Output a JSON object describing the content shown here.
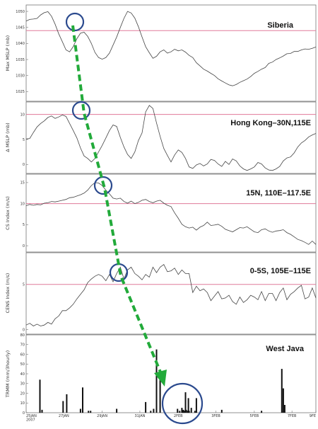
{
  "chart_data": [
    {
      "type": "line",
      "title": "Siberia",
      "ylabel": "Max MSLP (mb)",
      "ylim": [
        1022,
        1052
      ],
      "yticks": [
        1050,
        1045,
        1040,
        1035,
        1030,
        1025
      ],
      "reference_line": 1044,
      "x": [
        0,
        0.05,
        0.1,
        0.15,
        0.2,
        0.25,
        0.3,
        0.35,
        0.4,
        0.45,
        0.5,
        0.55,
        0.6,
        0.65,
        0.7,
        0.75,
        0.8,
        0.85,
        0.9,
        0.95,
        1,
        1.05,
        1.1,
        1.15,
        1.2,
        1.25,
        1.3,
        1.35,
        1.4,
        1.45,
        1.5,
        1.55,
        1.6,
        1.65,
        1.7,
        1.75,
        1.8,
        1.85,
        1.9,
        1.95,
        2,
        2.05,
        2.1,
        2.15,
        2.2,
        2.25,
        2.3,
        2.35,
        2.4,
        2.45,
        2.5,
        2.55,
        2.6,
        2.65,
        2.7,
        2.75,
        2.8,
        2.85,
        2.9,
        2.95,
        3,
        3.05,
        3.1,
        3.15,
        3.2,
        3.25,
        3.3,
        3.35,
        3.4,
        3.45,
        3.5,
        3.55,
        3.6,
        3.65,
        3.7,
        3.75,
        3.8,
        3.85,
        3.9,
        3.95,
        4
      ],
      "values": [
        1047,
        1047.5,
        1047.6,
        1047.8,
        1048.9,
        1049.6,
        1049.9,
        1048.5,
        1046,
        1043,
        1040.5,
        1038,
        1037.4,
        1039,
        1041.5,
        1043.2,
        1043.5,
        1042.2,
        1040,
        1037.2,
        1035.6,
        1035.1,
        1035.6,
        1037,
        1039.5,
        1042,
        1045,
        1047.8,
        1050,
        1049.5,
        1047.9,
        1045.2,
        1042,
        1039,
        1037.1,
        1035.4,
        1036,
        1037.4,
        1038,
        1037,
        1037.4,
        1038.2,
        1037.7,
        1038,
        1037.3,
        1036.3,
        1035.6,
        1034,
        1033,
        1032,
        1031.4,
        1030.7,
        1030,
        1029,
        1028.3,
        1027.7,
        1027.1,
        1026.8,
        1027.2,
        1027.9,
        1028.4,
        1028.9,
        1029.7,
        1030.7,
        1031.3,
        1032,
        1032.5,
        1033.8,
        1034.2,
        1035,
        1035.5,
        1036.1,
        1036.8,
        1036.9,
        1037.5,
        1037.5,
        1038,
        1038.3,
        1038.2,
        1038.5,
        1038.9
      ]
    },
    {
      "type": "line",
      "title": "Hong Kong–30N,115E",
      "ylabel": "Δ MSLP (mb)",
      "ylim": [
        -1.8,
        12.5
      ],
      "yticks": [
        10,
        5,
        0
      ],
      "reference_line": 10,
      "x": [
        0,
        0.05,
        0.1,
        0.15,
        0.2,
        0.25,
        0.3,
        0.35,
        0.4,
        0.45,
        0.5,
        0.55,
        0.6,
        0.65,
        0.7,
        0.75,
        0.8,
        0.85,
        0.9,
        0.95,
        1,
        1.05,
        1.1,
        1.15,
        1.2,
        1.25,
        1.3,
        1.35,
        1.4,
        1.45,
        1.5,
        1.55,
        1.6,
        1.65,
        1.7,
        1.75,
        1.8,
        1.85,
        1.9,
        1.95,
        2,
        2.05,
        2.1,
        2.15,
        2.2,
        2.25,
        2.3,
        2.35,
        2.4,
        2.45,
        2.5,
        2.55,
        2.6,
        2.65,
        2.7,
        2.75,
        2.8,
        2.85,
        2.9,
        2.95,
        3,
        3.05,
        3.1,
        3.15,
        3.2,
        3.25,
        3.3,
        3.35,
        3.4,
        3.45,
        3.5,
        3.55,
        3.6,
        3.65,
        3.7,
        3.75,
        3.8,
        3.85,
        3.9,
        3.95,
        4
      ],
      "values": [
        5.1,
        5.2,
        6.4,
        7.5,
        8.2,
        8.7,
        9.4,
        9.7,
        9.2,
        9.5,
        9.9,
        9.6,
        8.2,
        6.8,
        5.3,
        3.3,
        1.7,
        1.2,
        0.5,
        1.2,
        2.5,
        3.8,
        5.3,
        6.8,
        7.9,
        7.6,
        5.4,
        3.5,
        2,
        1.2,
        2.5,
        4.8,
        6.3,
        10.5,
        11.8,
        11.2,
        8.3,
        5.6,
        3.2,
        1.8,
        0.5,
        1.9,
        2.9,
        2.4,
        1.2,
        -0.5,
        -0.8,
        -0.1,
        0.2,
        -0.3,
        0.1,
        1,
        0.8,
        0.1,
        -0.4,
        0.6,
        0,
        1.1,
        0.7,
        -0.3,
        -0.9,
        -1.2,
        -0.9,
        -0.5,
        0.4,
        0.1,
        -0.7,
        -1.1,
        -1.2,
        -0.9,
        -0.4,
        0.7,
        1.3,
        1.5,
        2.3,
        3.5,
        4.3,
        4.8,
        5.5,
        5.9,
        6.2
      ]
    },
    {
      "type": "line",
      "title": "15N, 110E–117.5E",
      "ylabel": "CS Index (m/s)",
      "ylim": [
        -1.5,
        17
      ],
      "yticks": [
        15,
        10,
        5,
        0
      ],
      "reference_line": 10,
      "x": [
        0,
        0.05,
        0.1,
        0.15,
        0.2,
        0.25,
        0.3,
        0.35,
        0.4,
        0.45,
        0.5,
        0.55,
        0.6,
        0.65,
        0.7,
        0.75,
        0.8,
        0.85,
        0.9,
        0.95,
        1,
        1.05,
        1.1,
        1.15,
        1.2,
        1.25,
        1.3,
        1.35,
        1.4,
        1.45,
        1.5,
        1.55,
        1.6,
        1.65,
        1.7,
        1.75,
        1.8,
        1.85,
        1.9,
        1.95,
        2,
        2.05,
        2.1,
        2.15,
        2.2,
        2.25,
        2.3,
        2.35,
        2.4,
        2.45,
        2.5,
        2.55,
        2.6,
        2.65,
        2.7,
        2.75,
        2.8,
        2.85,
        2.9,
        2.95,
        3,
        3.05,
        3.1,
        3.15,
        3.2,
        3.25,
        3.3,
        3.35,
        3.4,
        3.45,
        3.5,
        3.55,
        3.6,
        3.65,
        3.7,
        3.75,
        3.8,
        3.85,
        3.9,
        3.95,
        4
      ],
      "values": [
        9.5,
        9.8,
        9.6,
        9.8,
        9.7,
        10.1,
        10.2,
        10.5,
        10.4,
        10.6,
        10.8,
        11,
        11.4,
        11.5,
        11.8,
        12.1,
        12.5,
        13.2,
        14.3,
        15,
        14.9,
        14.3,
        13.2,
        12.3,
        11.3,
        11.1,
        11.3,
        10.5,
        10.1,
        10.6,
        10,
        10.3,
        10.8,
        11,
        10.5,
        10.2,
        10.6,
        10.8,
        10.1,
        9.6,
        9.3,
        7.8,
        6.5,
        5.1,
        4.5,
        4.2,
        4.4,
        3.7,
        4.4,
        4.8,
        5.6,
        4.8,
        4.9,
        5.1,
        4.6,
        3.9,
        3.6,
        3.3,
        3.8,
        4.3,
        4.2,
        4.5,
        3.9,
        3.3,
        3.1,
        3.8,
        4,
        3.5,
        3.2,
        3.5,
        3.6,
        3.8,
        3.1,
        2.7,
        2.1,
        1.5,
        1.2,
        0.8,
        0.3,
        1.1,
        0.3
      ]
    },
    {
      "type": "line",
      "title": "0-5S, 105E–115E",
      "ylabel": "CENS Index (m/s)",
      "ylim": [
        -0.5,
        8.5
      ],
      "yticks": [
        5,
        0
      ],
      "reference_line": 5,
      "x": [
        0,
        0.05,
        0.1,
        0.15,
        0.2,
        0.25,
        0.3,
        0.35,
        0.4,
        0.45,
        0.5,
        0.55,
        0.6,
        0.65,
        0.7,
        0.75,
        0.8,
        0.85,
        0.9,
        0.95,
        1,
        1.05,
        1.1,
        1.15,
        1.2,
        1.25,
        1.3,
        1.35,
        1.4,
        1.45,
        1.5,
        1.55,
        1.6,
        1.65,
        1.7,
        1.75,
        1.8,
        1.85,
        1.9,
        1.95,
        2,
        2.05,
        2.1,
        2.15,
        2.2,
        2.25,
        2.3,
        2.35,
        2.4,
        2.45,
        2.5,
        2.55,
        2.6,
        2.65,
        2.7,
        2.75,
        2.8,
        2.85,
        2.9,
        2.95,
        3,
        3.05,
        3.1,
        3.15,
        3.2,
        3.25,
        3.3,
        3.35,
        3.4,
        3.45,
        3.5,
        3.55,
        3.6,
        3.65,
        3.7,
        3.75,
        3.8,
        3.85,
        3.9,
        3.95,
        4
      ],
      "values": [
        0.5,
        0.7,
        0.4,
        0.6,
        0.4,
        0.5,
        0.8,
        0.6,
        1.2,
        1.5,
        2.1,
        2.1,
        2.4,
        2.8,
        3.4,
        3.9,
        4.4,
        5.2,
        5.6,
        5.9,
        6.1,
        5.9,
        5.4,
        6.1,
        5.3,
        6.2,
        6.9,
        5.6,
        6.6,
        6.9,
        6.2,
        5.9,
        5.5,
        6.1,
        5.8,
        6.9,
        6.3,
        6.9,
        7.2,
        6.4,
        6.5,
        6.8,
        6.1,
        6.6,
        6.2,
        6.2,
        4.1,
        4.8,
        4.3,
        4.5,
        4.1,
        3.2,
        3.7,
        4.2,
        3.4,
        3.5,
        3.8,
        3.1,
        2.8,
        3.6,
        3,
        3.3,
        3.8,
        3.6,
        3.3,
        4.2,
        3.2,
        4,
        4,
        3.2,
        4.1,
        4.6,
        3.3,
        3.9,
        4.2,
        4.6,
        4.9,
        3.4,
        3.6,
        4.6,
        3.5
      ]
    },
    {
      "type": "bar",
      "title": "West Java",
      "ylabel": "TRMM (mm/3hourly)",
      "ylim": [
        0,
        80
      ],
      "yticks": [
        80,
        70,
        60,
        50,
        40,
        30,
        20,
        10,
        0
      ],
      "xticks": [
        "25JAN\n2007",
        "27JAN",
        "29JAN",
        "31JAN",
        "2FEB",
        "3FEB",
        "5FEB",
        "7FEB",
        "9FE"
      ],
      "x": [
        0.19,
        0.22,
        0.51,
        0.56,
        0.75,
        0.78,
        0.86,
        0.89,
        1.25,
        1.65,
        1.72,
        1.76,
        1.8,
        1.85,
        2.09,
        2.12,
        2.15,
        2.16,
        2.17,
        2.18,
        2.2,
        2.21,
        2.23,
        2.24,
        2.25,
        2.28,
        2.33,
        2.35,
        2.7,
        3.25,
        3.53,
        3.55,
        3.57
      ],
      "values": [
        34,
        3,
        12,
        19,
        4,
        26,
        2,
        2,
        4,
        11,
        2,
        4,
        65,
        36,
        4,
        2,
        5,
        2,
        3,
        2,
        21,
        3,
        2,
        15,
        2,
        5,
        2,
        15,
        3,
        2,
        45,
        25,
        8
      ]
    }
  ],
  "arrow": {
    "color": "#22aa3a"
  },
  "circle_color": "#2b4a8e",
  "reference_line_color": "#e07a9a"
}
